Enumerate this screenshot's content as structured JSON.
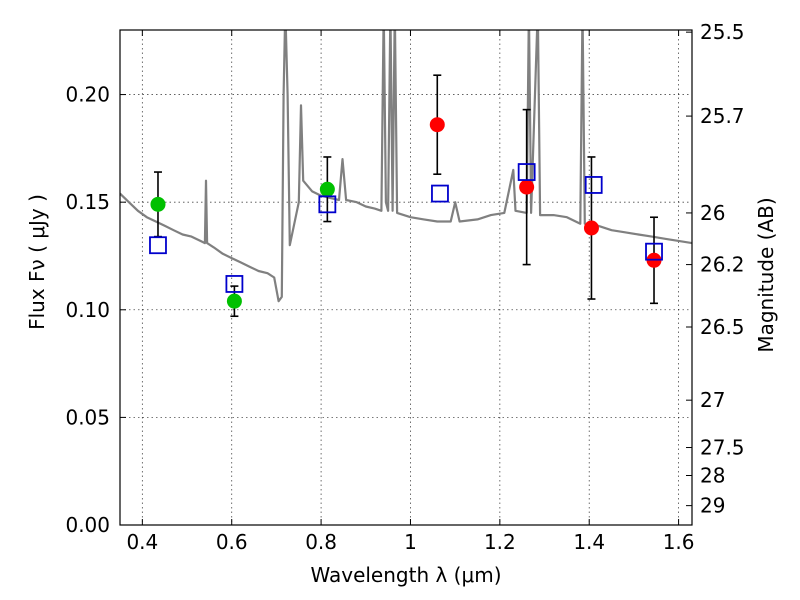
{
  "chart_data": {
    "type": "scatter",
    "title": "",
    "xlabel": "Wavelength  λ (μm)",
    "ylabel": "Flux  Fν (  μJy )",
    "ylabel_right": "Magnitude (AB)",
    "xlim": [
      0.35,
      1.63
    ],
    "ylim": [
      0.0,
      0.23
    ],
    "grid": true,
    "x_ticks": [
      0.4,
      0.6,
      0.8,
      1.0,
      1.2,
      1.4,
      1.6
    ],
    "x_tick_labels": [
      "0.4",
      "0.6",
      "0.8",
      "1",
      "1.2",
      "1.4",
      "1.6"
    ],
    "y_ticks": [
      0.0,
      0.05,
      0.1,
      0.15,
      0.2
    ],
    "y_tick_labels": [
      "0.00",
      "0.05",
      "0.10",
      "0.15",
      "0.20"
    ],
    "right_ticks": [
      {
        "label": "25.5",
        "flux": 0.229
      },
      {
        "label": "25.7",
        "flux": 0.19
      },
      {
        "label": "26",
        "flux": 0.145
      },
      {
        "label": "26.2",
        "flux": 0.121
      },
      {
        "label": "26.5",
        "flux": 0.092
      },
      {
        "label": "27",
        "flux": 0.058
      },
      {
        "label": "27.5",
        "flux": 0.036
      },
      {
        "label": "28",
        "flux": 0.023
      },
      {
        "label": "29",
        "flux": 0.009
      }
    ],
    "series": [
      {
        "marker": "circle",
        "color": "#00c000",
        "points": [
          {
            "x": 0.435,
            "y": 0.149,
            "err": 0.015
          },
          {
            "x": 0.606,
            "y": 0.104,
            "err": 0.007
          },
          {
            "x": 0.814,
            "y": 0.156,
            "err": 0.015
          }
        ]
      },
      {
        "marker": "circle",
        "color": "#ff0000",
        "points": [
          {
            "x": 1.06,
            "y": 0.186,
            "err": 0.023
          },
          {
            "x": 1.26,
            "y": 0.157,
            "err": 0.036
          },
          {
            "x": 1.405,
            "y": 0.138,
            "err": 0.033
          },
          {
            "x": 1.545,
            "y": 0.123,
            "err": 0.02
          }
        ]
      },
      {
        "marker": "open-square",
        "color": "#0000cc",
        "points": [
          {
            "x": 0.435,
            "y": 0.13
          },
          {
            "x": 0.606,
            "y": 0.112
          },
          {
            "x": 0.814,
            "y": 0.149
          },
          {
            "x": 1.066,
            "y": 0.154
          },
          {
            "x": 1.26,
            "y": 0.164
          },
          {
            "x": 1.41,
            "y": 0.158
          },
          {
            "x": 1.545,
            "y": 0.127
          }
        ]
      }
    ],
    "model_spectrum": {
      "color": "#808080",
      "points": [
        [
          0.35,
          0.154
        ],
        [
          0.37,
          0.15
        ],
        [
          0.39,
          0.146
        ],
        [
          0.41,
          0.143
        ],
        [
          0.43,
          0.141
        ],
        [
          0.45,
          0.139
        ],
        [
          0.47,
          0.137
        ],
        [
          0.49,
          0.135
        ],
        [
          0.51,
          0.134
        ],
        [
          0.53,
          0.132
        ],
        [
          0.54,
          0.131
        ],
        [
          0.5425,
          0.16
        ],
        [
          0.545,
          0.131
        ],
        [
          0.56,
          0.129
        ],
        [
          0.58,
          0.126
        ],
        [
          0.6,
          0.124
        ],
        [
          0.62,
          0.122
        ],
        [
          0.64,
          0.12
        ],
        [
          0.66,
          0.118
        ],
        [
          0.68,
          0.117
        ],
        [
          0.695,
          0.115
        ],
        [
          0.705,
          0.104
        ],
        [
          0.712,
          0.106
        ],
        [
          0.716,
          0.2
        ],
        [
          0.72,
          0.24
        ],
        [
          0.725,
          0.2
        ],
        [
          0.73,
          0.13
        ],
        [
          0.74,
          0.14
        ],
        [
          0.75,
          0.15
        ],
        [
          0.755,
          0.195
        ],
        [
          0.76,
          0.16
        ],
        [
          0.78,
          0.155
        ],
        [
          0.8,
          0.153
        ],
        [
          0.82,
          0.152
        ],
        [
          0.84,
          0.151
        ],
        [
          0.848,
          0.17
        ],
        [
          0.856,
          0.151
        ],
        [
          0.88,
          0.15
        ],
        [
          0.9,
          0.148
        ],
        [
          0.92,
          0.147
        ],
        [
          0.935,
          0.146
        ],
        [
          0.94,
          0.24
        ],
        [
          0.945,
          0.15
        ],
        [
          0.95,
          0.146
        ],
        [
          0.955,
          0.24
        ],
        [
          0.96,
          0.146
        ],
        [
          0.965,
          0.24
        ],
        [
          0.97,
          0.145
        ],
        [
          1.0,
          0.143
        ],
        [
          1.03,
          0.142
        ],
        [
          1.06,
          0.141
        ],
        [
          1.09,
          0.141
        ],
        [
          1.1,
          0.15
        ],
        [
          1.11,
          0.141
        ],
        [
          1.15,
          0.142
        ],
        [
          1.18,
          0.144
        ],
        [
          1.21,
          0.145
        ],
        [
          1.23,
          0.165
        ],
        [
          1.235,
          0.146
        ],
        [
          1.26,
          0.145
        ],
        [
          1.265,
          0.24
        ],
        [
          1.27,
          0.145
        ],
        [
          1.285,
          0.24
        ],
        [
          1.29,
          0.144
        ],
        [
          1.32,
          0.144
        ],
        [
          1.35,
          0.143
        ],
        [
          1.38,
          0.14
        ],
        [
          1.385,
          0.24
        ],
        [
          1.39,
          0.14
        ],
        [
          1.42,
          0.139
        ],
        [
          1.45,
          0.137
        ],
        [
          1.48,
          0.136
        ],
        [
          1.51,
          0.135
        ],
        [
          1.54,
          0.134
        ],
        [
          1.57,
          0.133
        ],
        [
          1.6,
          0.132
        ],
        [
          1.63,
          0.131
        ]
      ]
    }
  }
}
